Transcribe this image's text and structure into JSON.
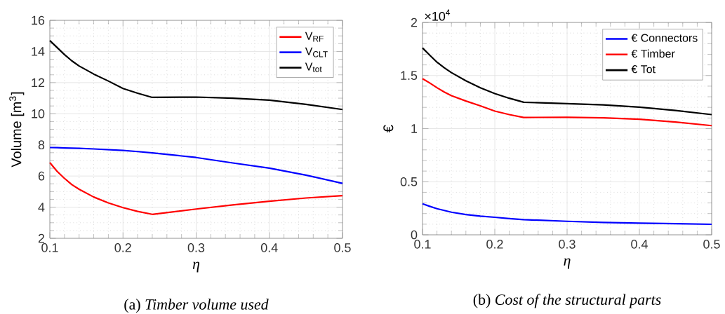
{
  "chart_data": [
    {
      "type": "line",
      "xlabel": "η",
      "ylabel": "Volume [m$^{3}$]",
      "xlim": [
        0.1,
        0.5
      ],
      "ylim": [
        2,
        16
      ],
      "xticks": [
        0.1,
        0.2,
        0.3,
        0.4,
        0.5
      ],
      "yticks": [
        2,
        4,
        6,
        8,
        10,
        12,
        14,
        16
      ],
      "grid": true,
      "legend": "top right",
      "x": [
        0.1,
        0.11,
        0.12,
        0.13,
        0.14,
        0.16,
        0.18,
        0.2,
        0.22,
        0.24,
        0.3,
        0.35,
        0.4,
        0.45,
        0.5
      ],
      "series": [
        {
          "name": "V$_{RF}$",
          "color": "#ff0000",
          "values": [
            6.86,
            6.3,
            5.85,
            5.45,
            5.15,
            4.65,
            4.27,
            3.97,
            3.73,
            3.54,
            3.88,
            4.14,
            4.38,
            4.59,
            4.74
          ]
        },
        {
          "name": "V$_{CLT}$",
          "color": "#0000ff",
          "values": [
            7.83,
            7.82,
            7.8,
            7.79,
            7.78,
            7.74,
            7.69,
            7.64,
            7.57,
            7.49,
            7.19,
            6.84,
            6.51,
            6.06,
            5.53
          ]
        },
        {
          "name": "V$_{tot}$",
          "color": "#000000",
          "values": [
            14.7,
            14.25,
            13.8,
            13.4,
            13.07,
            12.55,
            12.1,
            11.62,
            11.32,
            11.05,
            11.07,
            11.0,
            10.87,
            10.6,
            10.27
          ]
        }
      ],
      "annotations": [
        "(a) *Timber volume used*"
      ]
    },
    {
      "type": "line",
      "xlabel": "η",
      "ylabel": "€",
      "xlim": [
        0.1,
        0.5
      ],
      "ylim": [
        0,
        2
      ],
      "xticks": [
        0.1,
        0.2,
        0.3,
        0.4,
        0.5
      ],
      "yticks": [
        0,
        0.5,
        1,
        1.5,
        2
      ],
      "grid": true,
      "legend": "top right",
      "x": [
        0.1,
        0.11,
        0.12,
        0.13,
        0.14,
        0.16,
        0.18,
        0.2,
        0.22,
        0.24,
        0.3,
        0.35,
        0.4,
        0.45,
        0.5
      ],
      "series": [
        {
          "name": "€ Connectors",
          "color": "#0000ff",
          "values": [
            0.292,
            0.268,
            0.246,
            0.229,
            0.213,
            0.191,
            0.176,
            0.165,
            0.153,
            0.143,
            0.127,
            0.116,
            0.11,
            0.105,
            0.099
          ]
        },
        {
          "name": "€ Timber",
          "color": "#ff0000",
          "values": [
            1.47,
            1.43,
            1.385,
            1.345,
            1.31,
            1.26,
            1.215,
            1.165,
            1.132,
            1.105,
            1.107,
            1.102,
            1.088,
            1.062,
            1.028
          ]
        },
        {
          "name": "€ Tot",
          "color": "#000000",
          "values": [
            1.76,
            1.692,
            1.626,
            1.574,
            1.527,
            1.45,
            1.385,
            1.33,
            1.286,
            1.248,
            1.235,
            1.224,
            1.202,
            1.171,
            1.132
          ]
        }
      ],
      "annotations": [
        "×10$^{4}$",
        "(b) *Cost of the structural parts*"
      ]
    }
  ]
}
